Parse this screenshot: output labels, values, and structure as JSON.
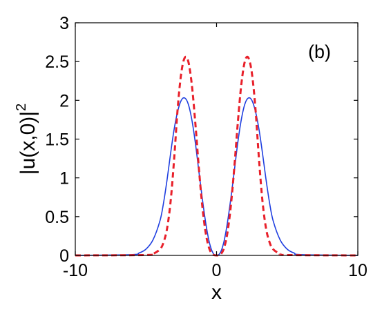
{
  "chart_data": {
    "type": "line",
    "panel_label": "(b)",
    "xlabel": "x",
    "ylabel_main": "|u(x,0)|",
    "ylabel_sup": "2",
    "xlim": [
      -10,
      10
    ],
    "ylim": [
      0,
      3
    ],
    "xticks": [
      -10,
      0,
      10
    ],
    "xtick_labels": [
      "-10",
      "0",
      "10"
    ],
    "yticks": [
      0,
      0.5,
      1,
      1.5,
      2,
      2.5,
      3
    ],
    "ytick_labels": [
      "0",
      "0.5",
      "1",
      "1.5",
      "2",
      "2.5",
      "3"
    ],
    "grid": false,
    "legend": "none",
    "series": [
      {
        "color": "#1f3fe0",
        "style": "solid",
        "x": [
          -10,
          -6,
          -5.5,
          -5,
          -4.5,
          -4,
          -3.75,
          -3.5,
          -3.25,
          -3,
          -2.75,
          -2.5,
          -2.25,
          -2,
          -1.75,
          -1.5,
          -1.25,
          -1,
          -0.75,
          -0.5,
          -0.25,
          0,
          0.25,
          0.5,
          0.75,
          1,
          1.25,
          1.5,
          1.75,
          2,
          2.25,
          2.5,
          2.75,
          3,
          3.25,
          3.5,
          3.75,
          4,
          4.5,
          5,
          5.5,
          6,
          10
        ],
        "y": [
          0,
          0.01,
          0.03,
          0.08,
          0.2,
          0.45,
          0.68,
          0.98,
          1.32,
          1.63,
          1.86,
          2.0,
          2.03,
          1.95,
          1.75,
          1.45,
          1.08,
          0.72,
          0.4,
          0.16,
          0.03,
          0,
          0.03,
          0.16,
          0.4,
          0.72,
          1.08,
          1.45,
          1.75,
          1.95,
          2.03,
          2.0,
          1.86,
          1.63,
          1.32,
          0.98,
          0.68,
          0.45,
          0.2,
          0.08,
          0.03,
          0.01,
          0
        ]
      },
      {
        "color": "#e8202a",
        "style": "dashed",
        "x": [
          -10,
          -5,
          -4.5,
          -4,
          -3.75,
          -3.5,
          -3.25,
          -3,
          -2.75,
          -2.5,
          -2.25,
          -2,
          -1.75,
          -1.5,
          -1.25,
          -1,
          -0.75,
          -0.5,
          -0.25,
          0,
          0.25,
          0.5,
          0.75,
          1,
          1.25,
          1.5,
          1.75,
          2,
          2.25,
          2.5,
          2.75,
          3,
          3.25,
          3.5,
          3.75,
          4,
          4.5,
          5,
          10
        ],
        "y": [
          0,
          0.005,
          0.02,
          0.08,
          0.17,
          0.35,
          0.7,
          1.25,
          1.9,
          2.35,
          2.55,
          2.5,
          2.2,
          1.7,
          1.12,
          0.62,
          0.27,
          0.08,
          0.01,
          0,
          0.01,
          0.08,
          0.27,
          0.62,
          1.12,
          1.7,
          2.2,
          2.5,
          2.55,
          2.35,
          1.9,
          1.25,
          0.7,
          0.35,
          0.17,
          0.08,
          0.02,
          0.005,
          0
        ]
      }
    ]
  }
}
